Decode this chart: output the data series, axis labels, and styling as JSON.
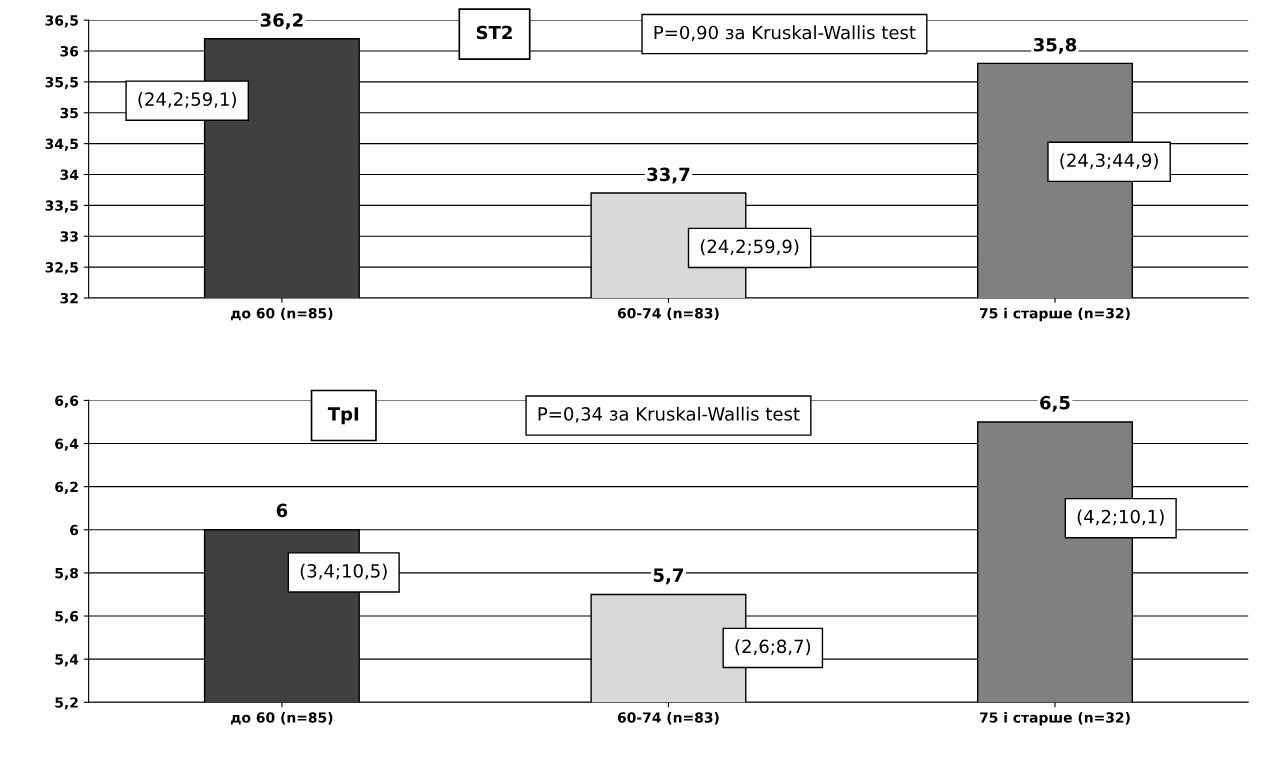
{
  "chart_data": [
    {
      "type": "bar",
      "title": "ST2",
      "categories": [
        "до 60 (n=85)",
        "60-74 (n=83)",
        "75 і старше (n=32)"
      ],
      "values": [
        36.2,
        33.7,
        35.8
      ],
      "value_labels": [
        "36,2",
        "33,7",
        "35,8"
      ],
      "colors": [
        "#404040",
        "#d9d9d9",
        "#808080"
      ],
      "ylim": [
        32,
        36.5
      ],
      "yticks": [
        32,
        {
          "value": 32.5,
          "label": "32,5"
        },
        33,
        {
          "value": 33.5,
          "label": "33,5"
        },
        34,
        {
          "value": 34.5,
          "label": "34,5"
        },
        35,
        {
          "value": 35.5,
          "label": "35,5"
        },
        36,
        {
          "value": 36.5,
          "label": "36,5"
        }
      ],
      "grid": "y",
      "annotations": [
        "P=0,90 за Kruskal-Wallis test",
        "(24,2;59,1)",
        "(24,2;59,9)",
        "(24,3;44,9)"
      ]
    },
    {
      "type": "bar",
      "title": "TpI",
      "categories": [
        "до 60 (n=85)",
        "60-74 (n=83)",
        "75 і старше (n=32)"
      ],
      "values": [
        6,
        5.7,
        6.5
      ],
      "value_labels": [
        "6",
        "5,7",
        "6,5"
      ],
      "colors": [
        "#404040",
        "#d9d9d9",
        "#808080"
      ],
      "ylim": [
        5.2,
        6.6
      ],
      "yticks": [
        {
          "value": 5.2,
          "label": "5,2"
        },
        {
          "value": 5.4,
          "label": "5,4"
        },
        {
          "value": 5.6,
          "label": "5,6"
        },
        {
          "value": 5.8,
          "label": "5,8"
        },
        6,
        {
          "value": 6.2,
          "label": "6,2"
        },
        {
          "value": 6.4,
          "label": "6,4"
        },
        {
          "value": 6.6,
          "label": "6,6"
        }
      ],
      "grid": "y",
      "annotations": [
        "P=0,34 за Kruskal-Wallis test",
        "(3,4;10,5)",
        "(2,6;8,7)",
        "(4,2;10,1)"
      ]
    }
  ]
}
